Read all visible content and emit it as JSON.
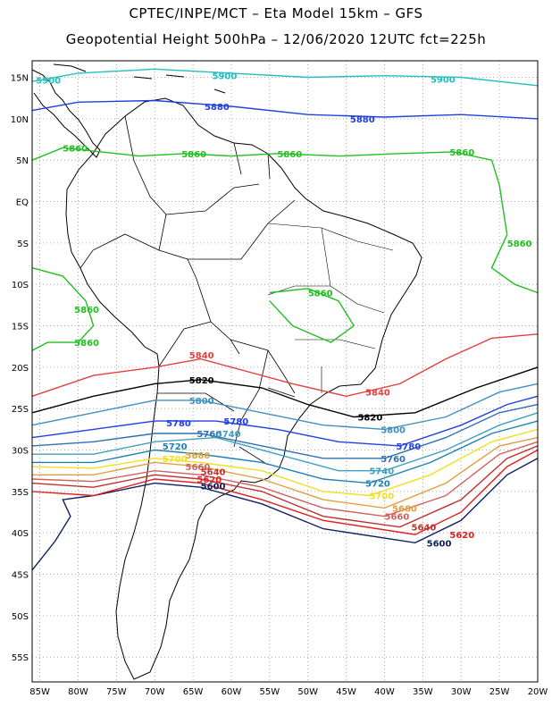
{
  "header": {
    "title_line1": "CPTEC/INPE/MCT –  Eta Model 15km – GFS",
    "title_line2": "Geopotential Height 500hPa – 12/06/2020 12UTC fct=225h"
  },
  "map": {
    "lat_labels": [
      "15N",
      "10N",
      "5N",
      "EQ",
      "5S",
      "10S",
      "15S",
      "20S",
      "25S",
      "30S",
      "35S",
      "40S",
      "45S",
      "50S",
      "55S"
    ],
    "lat_values": [
      15,
      10,
      5,
      0,
      -5,
      -10,
      -15,
      -20,
      -25,
      -30,
      -35,
      -40,
      -45,
      -50,
      -55
    ],
    "lon_labels": [
      "85W",
      "80W",
      "75W",
      "70W",
      "65W",
      "60W",
      "55W",
      "50W",
      "45W",
      "40W",
      "35W",
      "30W",
      "25W",
      "20W"
    ],
    "lon_values": [
      -85,
      -80,
      -75,
      -70,
      -65,
      -60,
      -55,
      -50,
      -45,
      -40,
      -35,
      -30,
      -25,
      -20
    ],
    "lat_range": [
      -58,
      17
    ],
    "lon_range": [
      -86,
      -20
    ],
    "gridlines": "dotted",
    "colors": {
      "5900": "#20c0c0",
      "5880": "#2040e0",
      "5860": "#20c020",
      "5840": "#e04040",
      "5820": "#000000",
      "5800": "#4090c0",
      "5780": "#2040e0",
      "5760": "#3070b0",
      "5740": "#40a0c0",
      "5720": "#2080b0",
      "5700": "#f0e020",
      "5680": "#e0a040",
      "5660": "#d06060",
      "5640": "#c03030",
      "5620": "#e02020",
      "5600": "#102060"
    },
    "contour_labels": [
      {
        "text": "5900",
        "level": "5900",
        "lon": -85.5,
        "lat": 14.7
      },
      {
        "text": "5900",
        "level": "5900",
        "lon": -62.5,
        "lat": 15.2
      },
      {
        "text": "5900",
        "level": "5900",
        "lon": -34.0,
        "lat": 14.8
      },
      {
        "text": "5880",
        "level": "5880",
        "lon": -63.5,
        "lat": 11.5
      },
      {
        "text": "5880",
        "level": "5880",
        "lon": -44.5,
        "lat": 10.0
      },
      {
        "text": "5860",
        "level": "5860",
        "lon": -82.0,
        "lat": 6.5
      },
      {
        "text": "5860",
        "level": "5860",
        "lon": -66.5,
        "lat": 5.8
      },
      {
        "text": "5860",
        "level": "5860",
        "lon": -54.0,
        "lat": 5.8
      },
      {
        "text": "5860",
        "level": "5860",
        "lon": -31.5,
        "lat": 6.0
      },
      {
        "text": "5860",
        "level": "5860",
        "lon": -24.0,
        "lat": -5.0
      },
      {
        "text": "5860",
        "level": "5860",
        "lon": -50.0,
        "lat": -11.0
      },
      {
        "text": "5860",
        "level": "5860",
        "lon": -80.5,
        "lat": -13.0
      },
      {
        "text": "5860",
        "level": "5860",
        "lon": -80.5,
        "lat": -17.0
      },
      {
        "text": "5840",
        "level": "5840",
        "lon": -65.5,
        "lat": -18.5
      },
      {
        "text": "5840",
        "level": "5840",
        "lon": -42.5,
        "lat": -23.0
      },
      {
        "text": "5820",
        "level": "5820",
        "lon": -65.5,
        "lat": -21.5
      },
      {
        "text": "5820",
        "level": "5820",
        "lon": -43.5,
        "lat": -26.0
      },
      {
        "text": "5800",
        "level": "5800",
        "lon": -65.5,
        "lat": -24.0
      },
      {
        "text": "5800",
        "level": "5800",
        "lon": -40.5,
        "lat": -27.5
      },
      {
        "text": "5780",
        "level": "5780",
        "lon": -68.5,
        "lat": -26.7
      },
      {
        "text": "5780",
        "level": "5780",
        "lon": -61.0,
        "lat": -26.5
      },
      {
        "text": "5780",
        "level": "5780",
        "lon": -38.5,
        "lat": -29.5
      },
      {
        "text": "5760",
        "level": "5760",
        "lon": -64.5,
        "lat": -28.0
      },
      {
        "text": "5760",
        "level": "5760",
        "lon": -40.5,
        "lat": -31.0
      },
      {
        "text": "5740",
        "level": "5740",
        "lon": -62.0,
        "lat": -28.0
      },
      {
        "text": "5740",
        "level": "5740",
        "lon": -42.0,
        "lat": -32.5
      },
      {
        "text": "5720",
        "level": "5720",
        "lon": -69.0,
        "lat": -29.5
      },
      {
        "text": "5720",
        "level": "5720",
        "lon": -42.5,
        "lat": -34.0
      },
      {
        "text": "5700",
        "level": "5700",
        "lon": -69.0,
        "lat": -31.0
      },
      {
        "text": "5700",
        "level": "5700",
        "lon": -42.0,
        "lat": -35.5
      },
      {
        "text": "5680",
        "level": "5680",
        "lon": -66.0,
        "lat": -30.6
      },
      {
        "text": "5680",
        "level": "5680",
        "lon": -39.0,
        "lat": -37.0
      },
      {
        "text": "5660",
        "level": "5660",
        "lon": -66.0,
        "lat": -32.0
      },
      {
        "text": "5660",
        "level": "5660",
        "lon": -40.0,
        "lat": -38.0
      },
      {
        "text": "5640",
        "level": "5640",
        "lon": -64.0,
        "lat": -32.6
      },
      {
        "text": "5640",
        "level": "5640",
        "lon": -36.5,
        "lat": -39.3
      },
      {
        "text": "5620",
        "level": "5620",
        "lon": -64.5,
        "lat": -33.5
      },
      {
        "text": "5620",
        "level": "5620",
        "lon": -31.5,
        "lat": -40.2
      },
      {
        "text": "5600",
        "level": "5600",
        "lon": -64.0,
        "lat": -34.3
      },
      {
        "text": "5600",
        "level": "5600",
        "lon": -34.5,
        "lat": -41.2
      }
    ]
  }
}
